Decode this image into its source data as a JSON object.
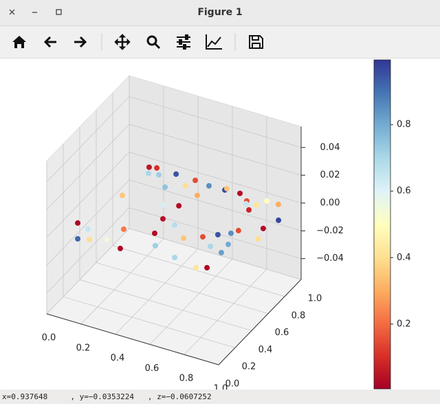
{
  "window": {
    "title": "Figure 1"
  },
  "status": "x=0.937648     , y=−0.0353224   , z=−0.0607252",
  "chart_data": {
    "type": "scatter3d",
    "x": [
      0.156,
      0.194,
      0.18,
      0.233,
      0.308,
      0.315,
      0.402,
      0.422,
      0.508,
      0.497,
      0.598,
      0.601,
      0.681,
      0.745,
      0.794,
      0.807,
      0.836,
      0.754,
      0.903,
      0.973,
      0.94,
      0.961,
      0.837,
      0.815,
      0.762,
      0.851,
      0.856,
      0.779,
      0.703,
      0.857,
      0.807,
      0.622,
      0.666,
      0.527,
      0.47,
      0.444,
      0.524,
      0.459,
      0.384,
      0.158,
      0.312,
      0.381,
      0.28,
      0.15,
      0.077,
      0.146,
      0.202
    ],
    "y": [
      0.916,
      0.93,
      0.858,
      0.873,
      0.926,
      0.777,
      0.845,
      0.921,
      0.908,
      0.789,
      0.913,
      0.931,
      0.923,
      0.872,
      0.796,
      0.861,
      0.926,
      0.845,
      0.926,
      0.782,
      0.666,
      0.557,
      0.58,
      0.535,
      0.487,
      0.427,
      0.333,
      0.36,
      0.427,
      0.157,
      0.127,
      0.363,
      0.163,
      0.218,
      0.329,
      0.483,
      0.458,
      0.645,
      0.608,
      0.587,
      0.283,
      0.098,
      0.143,
      0.187,
      0.215,
      0.071,
      0.096
    ],
    "z": [
      0,
      0,
      0,
      0,
      0,
      0,
      0,
      0,
      0,
      0,
      0,
      0,
      0,
      0,
      0,
      0,
      0,
      0,
      0,
      0,
      0,
      0,
      0,
      0,
      0,
      0,
      0,
      0,
      0,
      0,
      0,
      0,
      0,
      0,
      0,
      0,
      0,
      0,
      0,
      0,
      0,
      0,
      0,
      0,
      0,
      0,
      0
    ],
    "c": [
      0.05,
      0.1,
      0.7,
      0.72,
      0.95,
      0.75,
      0.4,
      0.15,
      0.85,
      0.3,
      0.97,
      0.35,
      0.03,
      0.15,
      0.08,
      0.42,
      0.5,
      0.65,
      0.3,
      0.97,
      0.03,
      0.4,
      0.15,
      0.85,
      0.95,
      0.8,
      0.82,
      0.7,
      0.15,
      0.02,
      0.42,
      0.35,
      0.7,
      0.72,
      0.03,
      0.04,
      0.68,
      0.03,
      0.62,
      0.35,
      0.22,
      0.02,
      0.55,
      0.65,
      0.02,
      0.92,
      0.4
    ],
    "colormap": [
      "#a50026",
      "#d73027",
      "#f46d43",
      "#fdae61",
      "#fee090",
      "#ffffbf",
      "#e0f3f8",
      "#abd9e9",
      "#74add1",
      "#4575b4",
      "#313695"
    ],
    "clim": [
      0.005,
      0.995
    ],
    "xlim": [
      0,
      1
    ],
    "ylim": [
      0,
      1
    ],
    "zlim": [
      -0.055,
      0.055
    ],
    "xticks": [
      {
        "value": 0,
        "label": "0.0"
      },
      0.2,
      0.4,
      0.6,
      0.8,
      {
        "value": 1,
        "label": "1.0"
      }
    ],
    "yticks": [
      {
        "value": 0,
        "label": "0.0"
      },
      0.2,
      0.4,
      0.6,
      0.8,
      {
        "value": 1,
        "label": "1.0"
      }
    ],
    "zticks": [
      {
        "value": -0.04,
        "label": "−0.04"
      },
      {
        "value": -0.02,
        "label": "−0.02"
      },
      {
        "value": 0,
        "label": "0.00"
      },
      0.02,
      0.04
    ],
    "colorbar_ticks": [
      0.2,
      0.4,
      0.6,
      0.8
    ],
    "grid": true
  }
}
